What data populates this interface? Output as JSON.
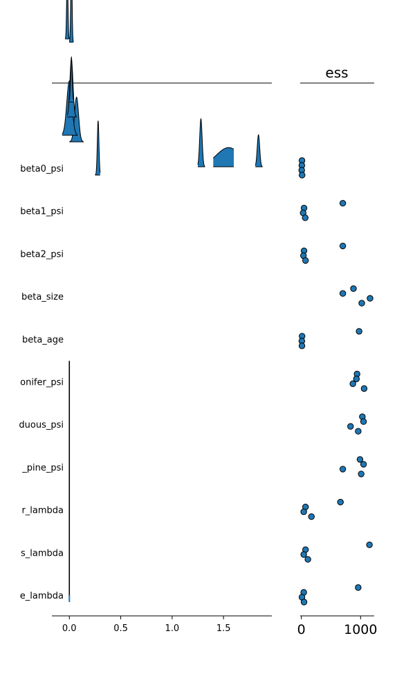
{
  "chart_data": [
    {
      "type": "ridgeline",
      "title": "",
      "xlabel": "",
      "ylabel": "",
      "xlim": [
        -0.17,
        1.97
      ],
      "xticks": [
        0.0,
        0.5,
        1.0,
        1.5
      ],
      "xtick_labels": [
        "0.0",
        "0.5",
        "1.0",
        "1.5"
      ],
      "parameters": [
        "beta0_psi",
        "beta1_psi",
        "beta2_psi",
        "beta_size",
        "beta_age",
        "onifer_psi",
        "duous_psi",
        "_pine_psi",
        "r_lambda",
        "s_lambda",
        "e_lambda"
      ],
      "ridges": [
        {
          "param": "beta0_psi",
          "base": 0,
          "center": 0.28,
          "sd": 0.008,
          "height": 0.85,
          "lo": 0.25,
          "hi": 0.3
        },
        {
          "param": "beta0_psi",
          "base": 0.25,
          "center": 1.28,
          "sd": 0.012,
          "height": 0.75,
          "lo": 1.25,
          "hi": 1.32
        },
        {
          "param": "beta0_psi",
          "base": 0.25,
          "center": 1.55,
          "sd": 0.12,
          "height": 0.3,
          "lo": 1.4,
          "hi": 1.6
        },
        {
          "param": "beta0_psi",
          "base": 0.25,
          "center": 1.84,
          "sd": 0.012,
          "height": 0.5,
          "lo": 1.81,
          "hi": 1.88
        },
        {
          "param": "beta0_psi",
          "base": 1.0,
          "center": 0.07,
          "sd": 0.02,
          "height": 0.7,
          "lo": 0.0,
          "hi": 0.14
        },
        {
          "param": "beta0_psi",
          "base": 1.2,
          "center": 0.0,
          "sd": 0.025,
          "height": 0.85,
          "lo": -0.07,
          "hi": 0.08
        },
        {
          "param": "beta1_psi",
          "base": 1.75,
          "center": 0.02,
          "sd": 0.015,
          "height": 0.9,
          "lo": -0.02,
          "hi": 0.07
        },
        {
          "param": "beta2_psi",
          "base": 2.2,
          "center": 0.02,
          "sd": 0.008,
          "height": 0.7,
          "lo": 0.0,
          "hi": 0.04
        },
        {
          "param": "beta_size",
          "base": 4.0,
          "center": 0.02,
          "sd": 0.006,
          "height": 1.4,
          "lo": 0.0,
          "hi": 0.04
        },
        {
          "param": "beta_age",
          "base": 4.1,
          "center": -0.02,
          "sd": 0.006,
          "height": 1.1,
          "lo": -0.04,
          "hi": 0.0
        }
      ]
    },
    {
      "type": "scatter",
      "title": "ess",
      "xlabel": "",
      "ylabel": "",
      "xlim": [
        -20,
        1230
      ],
      "xticks": [
        0,
        1000
      ],
      "xtick_labels": [
        "0",
        "1000"
      ],
      "parameters": [
        "beta0_psi",
        "beta1_psi",
        "beta2_psi",
        "beta_size",
        "beta_age",
        "onifer_psi",
        "duous_psi",
        "_pine_psi",
        "r_lambda",
        "s_lambda",
        "e_lambda"
      ],
      "points": [
        {
          "param": "beta0_psi",
          "chain": 0,
          "ess": 10
        },
        {
          "param": "beta0_psi",
          "chain": 1,
          "ess": 8
        },
        {
          "param": "beta0_psi",
          "chain": 2,
          "ess": 6
        },
        {
          "param": "beta0_psi",
          "chain": 3,
          "ess": 12
        },
        {
          "param": "beta1_psi",
          "chain": 0,
          "ess": 700
        },
        {
          "param": "beta1_psi",
          "chain": 1,
          "ess": 45
        },
        {
          "param": "beta1_psi",
          "chain": 2,
          "ess": 30
        },
        {
          "param": "beta1_psi",
          "chain": 3,
          "ess": 65
        },
        {
          "param": "beta2_psi",
          "chain": 0,
          "ess": 700
        },
        {
          "param": "beta2_psi",
          "chain": 1,
          "ess": 45
        },
        {
          "param": "beta2_psi",
          "chain": 2,
          "ess": 35
        },
        {
          "param": "beta2_psi",
          "chain": 3,
          "ess": 70
        },
        {
          "param": "beta_size",
          "chain": 0,
          "ess": 880
        },
        {
          "param": "beta_size",
          "chain": 1,
          "ess": 700
        },
        {
          "param": "beta_size",
          "chain": 2,
          "ess": 1160
        },
        {
          "param": "beta_size",
          "chain": 3,
          "ess": 1020
        },
        {
          "param": "beta_age",
          "chain": 0,
          "ess": 975
        },
        {
          "param": "beta_age",
          "chain": 1,
          "ess": 12
        },
        {
          "param": "beta_age",
          "chain": 2,
          "ess": 8
        },
        {
          "param": "beta_age",
          "chain": 3,
          "ess": 10
        },
        {
          "param": "onifer_psi",
          "chain": 0,
          "ess": 940
        },
        {
          "param": "onifer_psi",
          "chain": 1,
          "ess": 930
        },
        {
          "param": "onifer_psi",
          "chain": 2,
          "ess": 870
        },
        {
          "param": "onifer_psi",
          "chain": 3,
          "ess": 1060
        },
        {
          "param": "duous_psi",
          "chain": 0,
          "ess": 1030
        },
        {
          "param": "duous_psi",
          "chain": 1,
          "ess": 1050
        },
        {
          "param": "duous_psi",
          "chain": 2,
          "ess": 830
        },
        {
          "param": "duous_psi",
          "chain": 3,
          "ess": 960
        },
        {
          "param": "_pine_psi",
          "chain": 0,
          "ess": 990
        },
        {
          "param": "_pine_psi",
          "chain": 1,
          "ess": 1050
        },
        {
          "param": "_pine_psi",
          "chain": 2,
          "ess": 700
        },
        {
          "param": "_pine_psi",
          "chain": 3,
          "ess": 1010
        },
        {
          "param": "r_lambda",
          "chain": 0,
          "ess": 660
        },
        {
          "param": "r_lambda",
          "chain": 1,
          "ess": 70
        },
        {
          "param": "r_lambda",
          "chain": 2,
          "ess": 40
        },
        {
          "param": "r_lambda",
          "chain": 3,
          "ess": 170
        },
        {
          "param": "s_lambda",
          "chain": 0,
          "ess": 1150
        },
        {
          "param": "s_lambda",
          "chain": 1,
          "ess": 70
        },
        {
          "param": "s_lambda",
          "chain": 2,
          "ess": 40
        },
        {
          "param": "s_lambda",
          "chain": 3,
          "ess": 110
        },
        {
          "param": "e_lambda",
          "chain": 0,
          "ess": 960
        },
        {
          "param": "e_lambda",
          "chain": 1,
          "ess": 40
        },
        {
          "param": "e_lambda",
          "chain": 2,
          "ess": 10
        },
        {
          "param": "e_lambda",
          "chain": 3,
          "ess": 45
        }
      ]
    }
  ],
  "colors": {
    "fill": "#1f77b4",
    "edge": "#000000",
    "background": "#ffffff"
  }
}
